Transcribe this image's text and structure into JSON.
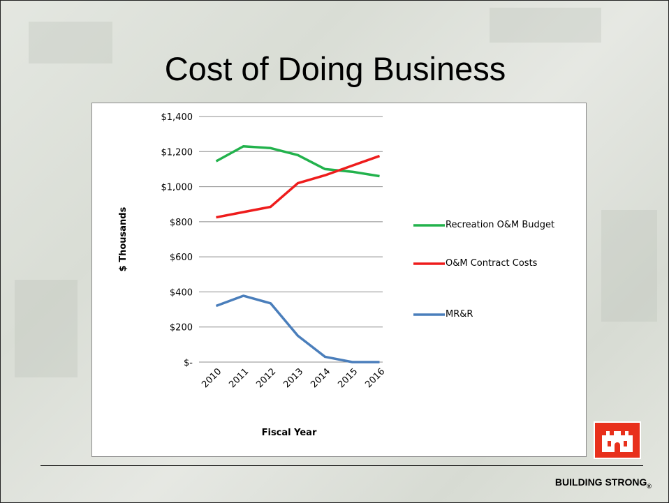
{
  "title": "Cost of Doing Business",
  "footer": {
    "text": "BUILDING STRONG",
    "mark": "®"
  },
  "chart_data": {
    "type": "line",
    "ylabel": "$ Thousands",
    "xlabel": "Fiscal Year",
    "categories": [
      "2010",
      "2011",
      "2012",
      "2013",
      "2014",
      "2015",
      "2016"
    ],
    "series": [
      {
        "name": "Recreation O&M Budget",
        "color": "#22b24c",
        "values": [
          1145,
          1230,
          1220,
          1180,
          1100,
          1085,
          1060
        ]
      },
      {
        "name": "O&M Contract Costs",
        "color": "#ee1c1c",
        "values": [
          825,
          855,
          885,
          1020,
          1065,
          1120,
          1175
        ]
      },
      {
        "name": "MR&R",
        "color": "#4a7ebb",
        "values": [
          320,
          378,
          335,
          150,
          30,
          0,
          0
        ]
      }
    ],
    "ylim": [
      0,
      1400
    ],
    "yticks": [
      {
        "value": 0,
        "label": "$-"
      },
      {
        "value": 200,
        "label": "$200"
      },
      {
        "value": 400,
        "label": "$400"
      },
      {
        "value": 600,
        "label": "$600"
      },
      {
        "value": 800,
        "label": "$800"
      },
      {
        "value": 1000,
        "label": "$1,000"
      },
      {
        "value": 1200,
        "label": "$1,200"
      },
      {
        "value": 1400,
        "label": "$1,400"
      }
    ],
    "grid": true,
    "legend": "right"
  }
}
